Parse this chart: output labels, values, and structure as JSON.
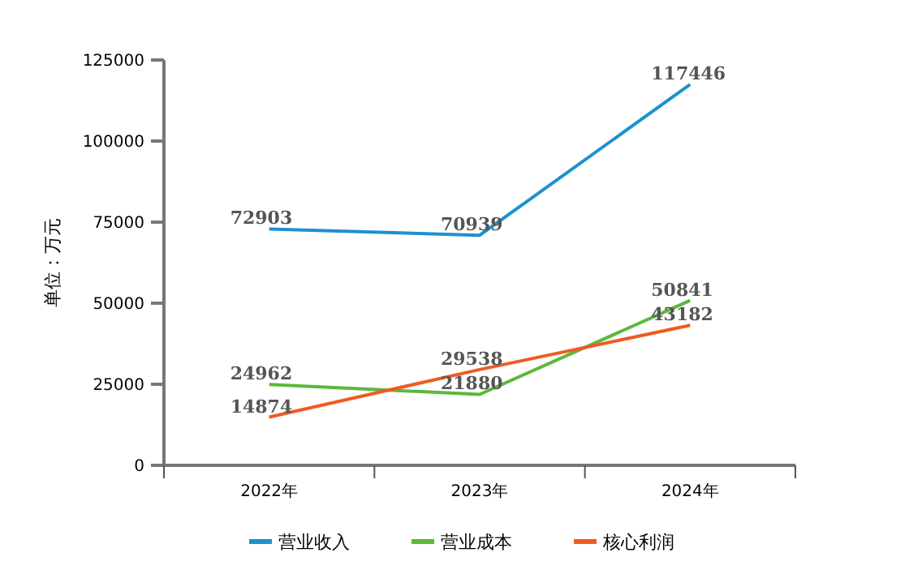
{
  "chart_data": {
    "type": "line",
    "ylabel": "单位：万元",
    "categories": [
      "2022年",
      "2023年",
      "2024年"
    ],
    "series": [
      {
        "name": "营业收入",
        "color": "#1e90d0",
        "values": [
          72903,
          70939,
          117446
        ]
      },
      {
        "name": "营业成本",
        "color": "#5cb83a",
        "values": [
          24962,
          21880,
          50841
        ]
      },
      {
        "name": "核心利润",
        "color": "#f05a22",
        "values": [
          14874,
          29538,
          43182
        ]
      }
    ],
    "ylim": [
      0,
      125000
    ],
    "yticks": [
      0,
      25000,
      50000,
      75000,
      100000,
      125000
    ],
    "data_labels": true,
    "legend": "bottom",
    "grid": false,
    "marker": "none",
    "line_style": "solid"
  }
}
